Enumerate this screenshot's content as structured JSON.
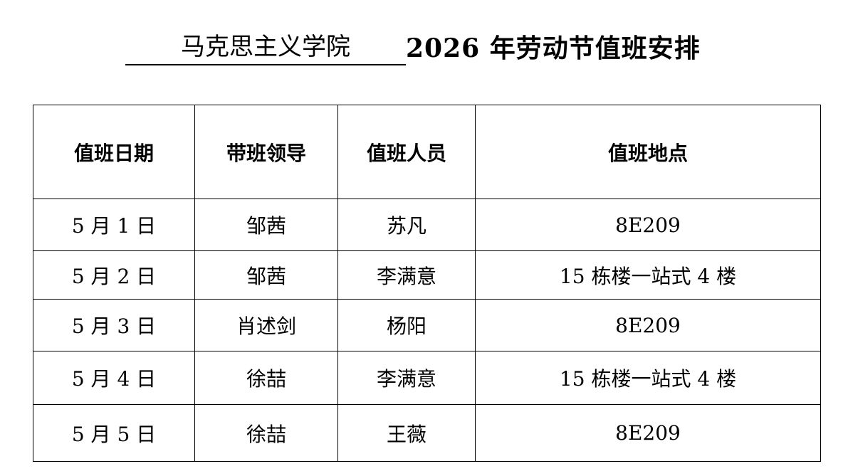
{
  "title": {
    "unit": "马克思主义学院",
    "main": "2026 年劳动节值班安排"
  },
  "table": {
    "headers": [
      "值班日期",
      "带班领导",
      "值班人员",
      "值班地点"
    ],
    "rows": [
      {
        "date": "5 月 1 日",
        "leader": "邹茜",
        "staff": "苏凡",
        "location": "8E209"
      },
      {
        "date": "5 月 2 日",
        "leader": "邹茜",
        "staff": "李满意",
        "location": "15 栋楼一站式 4 楼"
      },
      {
        "date": "5 月 3 日",
        "leader": "肖述剑",
        "staff": "杨阳",
        "location": "8E209"
      },
      {
        "date": "5 月 4 日",
        "leader": "徐喆",
        "staff": "李满意",
        "location": "15 栋楼一站式 4 楼"
      },
      {
        "date": "5 月 5 日",
        "leader": "徐喆",
        "staff": "王薇",
        "location": "8E209"
      }
    ]
  }
}
